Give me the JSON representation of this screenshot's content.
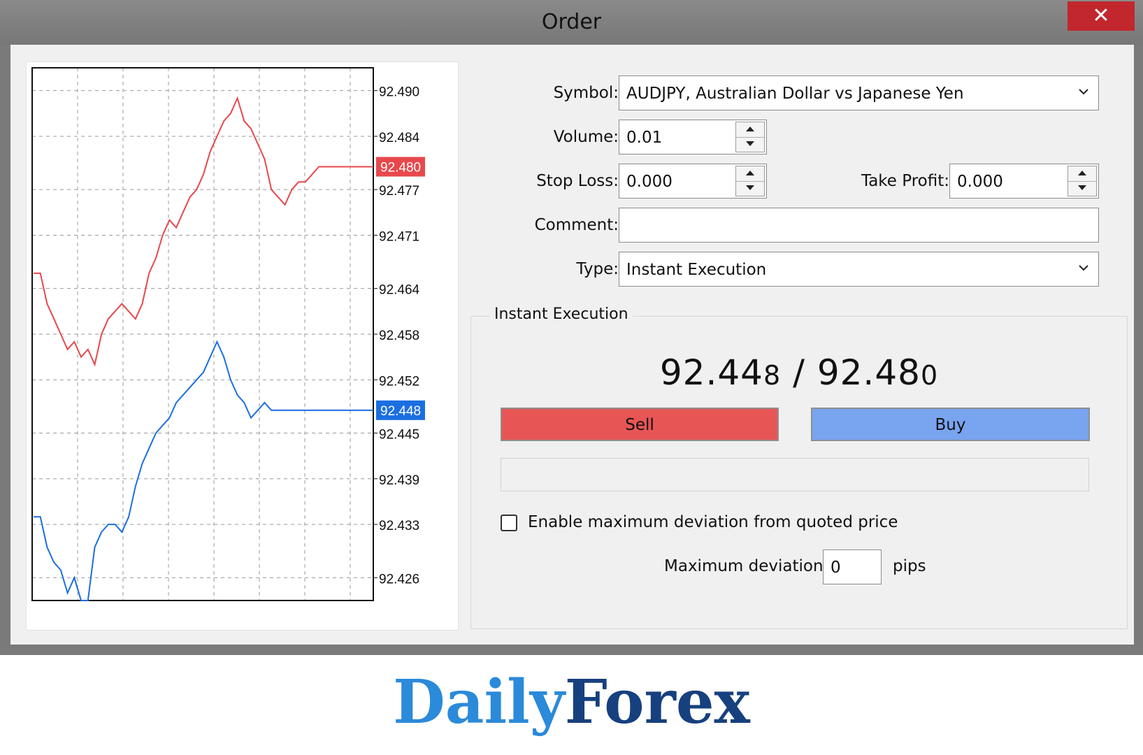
{
  "window": {
    "title": "Order"
  },
  "chart": {
    "y_ticks": [
      "92.490",
      "92.484",
      "92.477",
      "92.471",
      "92.464",
      "92.458",
      "92.452",
      "92.445",
      "92.439",
      "92.433",
      "92.426"
    ],
    "ask_label": "92.480",
    "bid_label": "92.448",
    "ask_color": "#e8484c",
    "bid_color": "#1a6fe0"
  },
  "chart_data": {
    "type": "line",
    "ylim": [
      92.423,
      92.493
    ],
    "y_ticks": [
      92.49,
      92.484,
      92.477,
      92.471,
      92.464,
      92.458,
      92.452,
      92.445,
      92.439,
      92.433,
      92.426
    ],
    "grid": true,
    "series": [
      {
        "color": "#e8484c",
        "values": [
          92.466,
          92.466,
          92.462,
          92.46,
          92.458,
          92.456,
          92.457,
          92.455,
          92.456,
          92.454,
          92.458,
          92.46,
          92.461,
          92.462,
          92.461,
          92.46,
          92.462,
          92.466,
          92.468,
          92.471,
          92.473,
          92.472,
          92.474,
          92.476,
          92.477,
          92.479,
          92.482,
          92.484,
          92.486,
          92.487,
          92.489,
          92.486,
          92.485,
          92.483,
          92.481,
          92.477,
          92.476,
          92.475,
          92.477,
          92.478,
          92.478,
          92.479,
          92.48,
          92.48,
          92.48,
          92.48,
          92.48,
          92.48,
          92.48,
          92.48,
          92.48
        ]
      },
      {
        "color": "#1a6fe0",
        "values": [
          92.434,
          92.434,
          92.43,
          92.428,
          92.427,
          92.424,
          92.426,
          92.423,
          92.423,
          92.43,
          92.432,
          92.433,
          92.433,
          92.432,
          92.434,
          92.438,
          92.441,
          92.443,
          92.445,
          92.446,
          92.447,
          92.449,
          92.45,
          92.451,
          92.452,
          92.453,
          92.455,
          92.457,
          92.455,
          92.452,
          92.45,
          92.449,
          92.447,
          92.448,
          92.449,
          92.448,
          92.448,
          92.448,
          92.448,
          92.448,
          92.448,
          92.448,
          92.448,
          92.448,
          92.448,
          92.448,
          92.448,
          92.448,
          92.448,
          92.448,
          92.448
        ]
      }
    ]
  },
  "form": {
    "symbol_label": "Symbol:",
    "symbol_value": "AUDJPY, Australian Dollar vs Japanese Yen",
    "volume_label": "Volume:",
    "volume_value": "0.01",
    "stoploss_label": "Stop Loss:",
    "stoploss_value": "0.000",
    "takeprofit_label": "Take Profit:",
    "takeprofit_value": "0.000",
    "comment_label": "Comment:",
    "comment_value": "",
    "type_label": "Type:",
    "type_value": "Instant Execution"
  },
  "execution": {
    "group_title": "Instant Execution",
    "bid_main": "92.44",
    "bid_last": "8",
    "separator": " / ",
    "ask_main": "92.48",
    "ask_last": "0",
    "sell_label": "Sell",
    "buy_label": "Buy",
    "sell_color": "#e85555",
    "buy_color": "#78a4f0",
    "deviation_checkbox_label": "Enable maximum deviation from quoted price",
    "deviation_checked": false,
    "max_deviation_label": "Maximum deviation:",
    "max_deviation_value": "0",
    "pips_label": "pips"
  },
  "branding": {
    "logo_part1": "Daily",
    "logo_part2": "Forex"
  }
}
